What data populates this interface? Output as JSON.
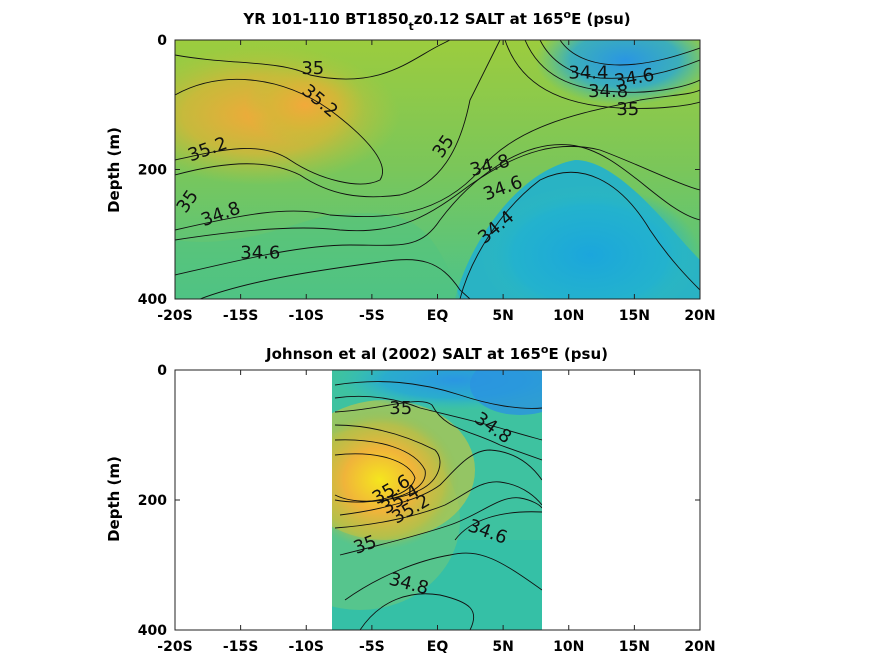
{
  "chart_data": [
    {
      "type": "heatmap",
      "title_main": "YR 101-110 BT1850",
      "title_sub": "t",
      "title_rest": "z0.12 SALT at 165",
      "title_sup": "o",
      "title_end": "E (psu)",
      "ylabel": "Depth (m)",
      "xlim": [
        -20,
        20
      ],
      "ylim": [
        0,
        400
      ],
      "xticks": [
        -20,
        -15,
        -10,
        -5,
        0,
        5,
        10,
        15,
        20
      ],
      "xticklabels": [
        "-20S",
        "-15S",
        "-10S",
        "-5S",
        "EQ",
        "5N",
        "10N",
        "15N",
        "20N"
      ],
      "yticks": [
        0,
        200,
        400
      ],
      "yticklabels": [
        "0",
        "200",
        "400"
      ],
      "data_extent": [
        -20,
        20
      ],
      "colors": {
        "fresh": "#1ba3d8",
        "mid": "#3dbfa8",
        "salty": "#f0a835"
      },
      "contour_labels": [
        {
          "text": "35",
          "x": -9.5,
          "y": 45,
          "rotate": 0
        },
        {
          "text": "35.2",
          "x": -9,
          "y": 95,
          "rotate": 40
        },
        {
          "text": "35.2",
          "x": -17.5,
          "y": 170,
          "rotate": -20
        },
        {
          "text": "35",
          "x": -19,
          "y": 250,
          "rotate": -55
        },
        {
          "text": "34.8",
          "x": -16.5,
          "y": 270,
          "rotate": -20
        },
        {
          "text": "34.6",
          "x": -13.5,
          "y": 330,
          "rotate": 0
        },
        {
          "text": "35",
          "x": 0.5,
          "y": 165,
          "rotate": -55
        },
        {
          "text": "34.8",
          "x": 4,
          "y": 195,
          "rotate": -15
        },
        {
          "text": "34.6",
          "x": 5,
          "y": 230,
          "rotate": -20
        },
        {
          "text": "34.4",
          "x": 4.5,
          "y": 290,
          "rotate": -40
        },
        {
          "text": "34.4",
          "x": 11.5,
          "y": 52,
          "rotate": 0
        },
        {
          "text": "34.6",
          "x": 15,
          "y": 60,
          "rotate": -10
        },
        {
          "text": "34.8",
          "x": 13,
          "y": 80,
          "rotate": 0
        },
        {
          "text": "35",
          "x": 14.5,
          "y": 108,
          "rotate": 0
        }
      ]
    },
    {
      "type": "heatmap",
      "title_main": "Johnson et al (2002) SALT at 165",
      "title_sup": "o",
      "title_end": "E (psu)",
      "ylabel": "Depth (m)",
      "xlim": [
        -20,
        20
      ],
      "ylim": [
        0,
        400
      ],
      "xticks": [
        -20,
        -15,
        -10,
        -5,
        0,
        5,
        10,
        15,
        20
      ],
      "xticklabels": [
        "-20S",
        "-15S",
        "-10S",
        "-5S",
        "EQ",
        "5N",
        "10N",
        "15N",
        "20N"
      ],
      "yticks": [
        0,
        200,
        400
      ],
      "yticklabels": [
        "0",
        "200",
        "400"
      ],
      "data_extent": [
        -8,
        8
      ],
      "colors": {
        "fresh": "#1ba3d8",
        "mid": "#3dbfa8",
        "salty": "#f5e020"
      },
      "contour_labels": [
        {
          "text": "35",
          "x": -2.8,
          "y": 60,
          "rotate": 0
        },
        {
          "text": "34.8",
          "x": 4.2,
          "y": 90,
          "rotate": 35
        },
        {
          "text": "35.6",
          "x": -3.5,
          "y": 185,
          "rotate": -30
        },
        {
          "text": "35.4",
          "x": -2.8,
          "y": 200,
          "rotate": -30
        },
        {
          "text": "35.2",
          "x": -2,
          "y": 215,
          "rotate": -30
        },
        {
          "text": "35",
          "x": -5.5,
          "y": 270,
          "rotate": -20
        },
        {
          "text": "34.6",
          "x": 3.8,
          "y": 250,
          "rotate": 20
        },
        {
          "text": "34.8",
          "x": -2.2,
          "y": 330,
          "rotate": 15
        }
      ]
    }
  ]
}
